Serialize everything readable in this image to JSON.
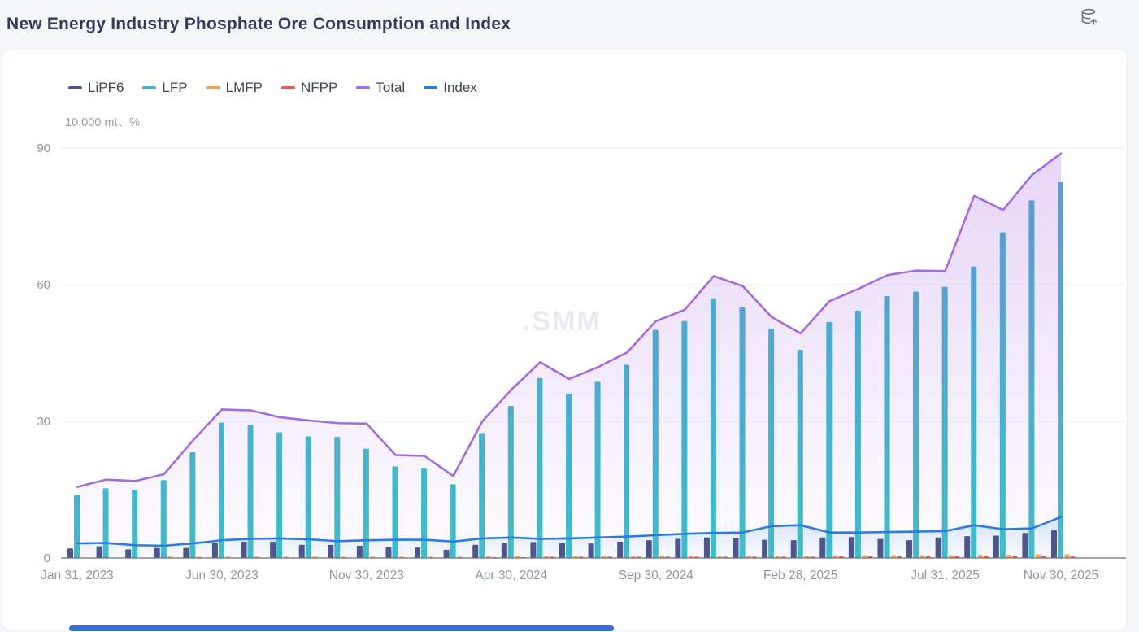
{
  "header": {
    "title": "New Energy Industry Phosphate Ore Consumption and Index",
    "export_icon": "database-upload-icon"
  },
  "legend": {
    "items": [
      {
        "label": "LiPF6",
        "color": "#4C568C"
      },
      {
        "label": "LFP",
        "color": "#3FB1C8"
      },
      {
        "label": "LMFP",
        "color": "#F2A254"
      },
      {
        "label": "NFPP",
        "color": "#E9575E"
      },
      {
        "label": "Total",
        "color": "#A46BE0"
      },
      {
        "label": "Index",
        "color": "#2B7BE0"
      }
    ]
  },
  "chart_data": {
    "type": "combo-bar-line",
    "title": "New Energy Industry Phosphate Ore Consumption and Index",
    "y_axis_unit": "10,000 mt、%",
    "watermark": ".SMM",
    "grid": true,
    "legend_position": "top-left",
    "ylim": [
      0,
      90
    ],
    "y_ticks": [
      0,
      30,
      60,
      90
    ],
    "categories": [
      "Jan 2023",
      "Feb 2023",
      "Mar 2023",
      "Apr 2023",
      "May 2023",
      "Jun 2023",
      "Jul 2023",
      "Aug 2023",
      "Sep 2023",
      "Oct 2023",
      "Nov 2023",
      "Dec 2023",
      "Jan 2024",
      "Feb 2024",
      "Mar 2024",
      "Apr 2024",
      "May 2024",
      "Jun 2024",
      "Jul 2024",
      "Aug 2024",
      "Sep 2024",
      "Oct 2024",
      "Nov 2024",
      "Dec 2024",
      "Jan 2025",
      "Feb 2025",
      "Mar 2025",
      "Apr 2025",
      "May 2025",
      "Jun 2025",
      "Jul 2025",
      "Aug 2025",
      "Sep 2025",
      "Oct 2025",
      "Nov 2025"
    ],
    "x_tick_labels": [
      {
        "label": "Jan 31, 2023",
        "index": 0
      },
      {
        "label": "Jun 30, 2023",
        "index": 5
      },
      {
        "label": "Nov 30, 2023",
        "index": 10
      },
      {
        "label": "Apr 30, 2024",
        "index": 15
      },
      {
        "label": "Sep 30, 2024",
        "index": 20
      },
      {
        "label": "Feb 28, 2025",
        "index": 25
      },
      {
        "label": "Jul 31, 2025",
        "index": 30
      },
      {
        "label": "Nov 30, 2025",
        "index": 34
      }
    ],
    "series": [
      {
        "name": "LiPF6",
        "type": "bar",
        "color": "#4C568C",
        "values": [
          2.1,
          2.6,
          1.9,
          2.2,
          2.2,
          3.3,
          3.6,
          3.6,
          2.9,
          2.9,
          2.7,
          2.5,
          2.3,
          1.8,
          2.9,
          3.4,
          3.5,
          3.3,
          3.2,
          3.6,
          3.9,
          4.2,
          4.5,
          4.4,
          4.0,
          3.9,
          4.5,
          4.6,
          4.2,
          3.9,
          4.5,
          4.8,
          4.9,
          5.5,
          6.1
        ]
      },
      {
        "name": "LFP",
        "type": "bar",
        "color": "#3FB1C8",
        "values": [
          13.9,
          15.3,
          15.0,
          17.1,
          23.2,
          29.7,
          29.2,
          27.6,
          26.7,
          26.6,
          24.0,
          20.1,
          19.8,
          16.2,
          27.4,
          33.4,
          39.5,
          36.1,
          38.7,
          42.4,
          50.1,
          52.0,
          57.0,
          55.0,
          50.3,
          45.7,
          51.8,
          54.3,
          57.5,
          58.5,
          59.5,
          64.0,
          71.5,
          78.5,
          82.5
        ]
      },
      {
        "name": "LMFP",
        "type": "bar",
        "color": "#F2A254",
        "values": [
          0,
          0,
          0,
          0.3,
          0.3,
          0.3,
          0.3,
          0.3,
          0.3,
          0.3,
          0.3,
          0.3,
          0.3,
          0.3,
          0.4,
          0.4,
          0.4,
          0.4,
          0.4,
          0.4,
          0.5,
          0.5,
          0.5,
          0.5,
          0.5,
          0.5,
          0.6,
          0.6,
          0.6,
          0.6,
          0.6,
          0.7,
          0.7,
          0.8,
          0.8
        ]
      },
      {
        "name": "NFPP",
        "type": "bar",
        "color": "#E9575E",
        "values": [
          0,
          0,
          0,
          0,
          0,
          0,
          0,
          0,
          0,
          0,
          0,
          0,
          0,
          0,
          0.2,
          0.2,
          0.3,
          0.3,
          0.3,
          0.3,
          0.3,
          0.3,
          0.3,
          0.3,
          0.3,
          0.3,
          0.4,
          0.4,
          0.4,
          0.4,
          0.4,
          0.5,
          0.5,
          0.5,
          0.4
        ]
      },
      {
        "name": "Total",
        "type": "line",
        "area": true,
        "color": "#A46BE0",
        "values": [
          15.6,
          17.2,
          16.9,
          18.4,
          25.8,
          32.6,
          32.4,
          30.9,
          30.2,
          29.6,
          29.5,
          22.6,
          22.4,
          18.0,
          30.0,
          36.9,
          43.0,
          39.3,
          41.9,
          45.1,
          52.0,
          54.5,
          61.9,
          59.7,
          52.9,
          49.3,
          56.4,
          59.1,
          62.1,
          63.1,
          63.0,
          79.5,
          76.4,
          84.1,
          88.8
        ]
      },
      {
        "name": "Index",
        "type": "line",
        "area": true,
        "color": "#2B7BE0",
        "values": [
          3.2,
          3.3,
          2.8,
          2.7,
          3.2,
          3.9,
          4.2,
          4.3,
          4.1,
          3.7,
          3.9,
          4.0,
          4.0,
          3.6,
          4.3,
          4.5,
          4.2,
          4.3,
          4.5,
          4.7,
          5.0,
          5.3,
          5.5,
          5.6,
          7.0,
          7.2,
          5.6,
          5.6,
          5.7,
          5.8,
          5.9,
          7.2,
          6.3,
          6.5,
          9.0
        ]
      }
    ]
  },
  "footer": {
    "scrollbar": "horizontal-scrollbar"
  }
}
